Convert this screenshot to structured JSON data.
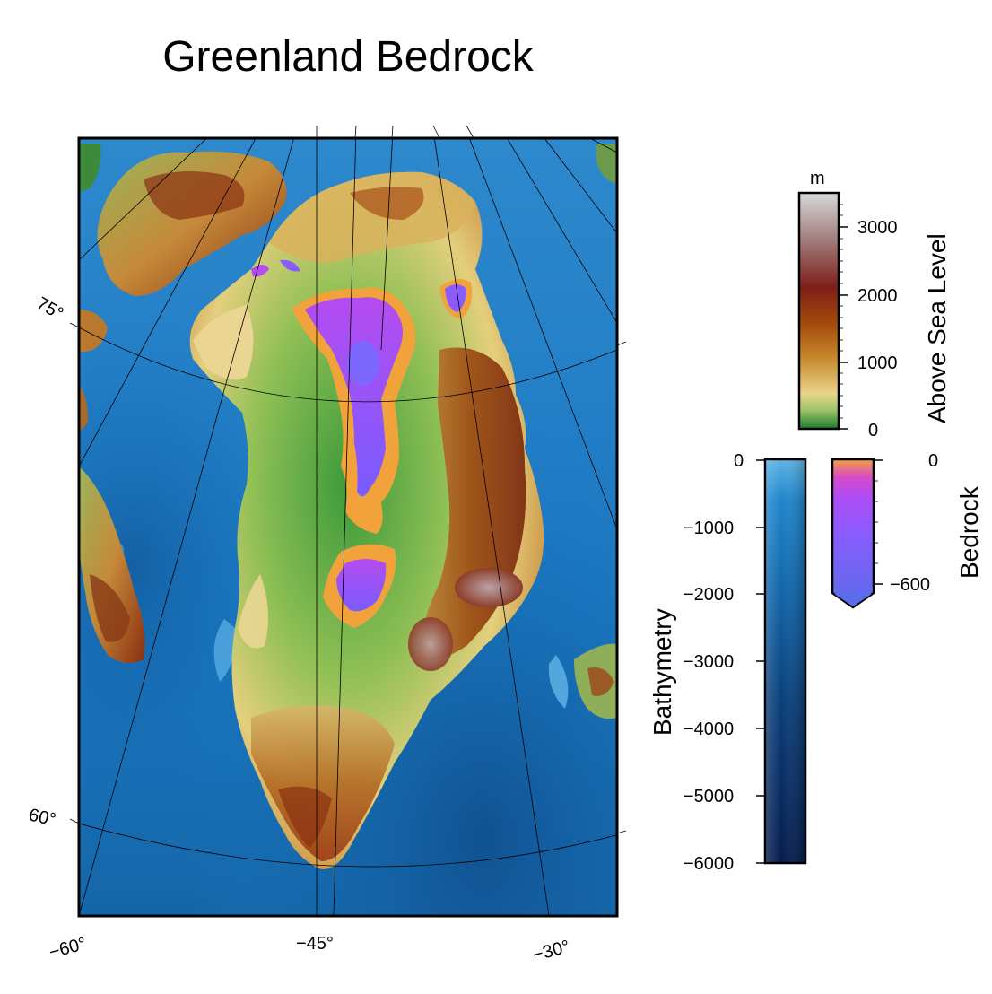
{
  "title": "Greenland Bedrock",
  "map": {
    "lat_labels": [
      "75°",
      "60°"
    ],
    "lon_labels": [
      "−60°",
      "−45°",
      "−30°"
    ]
  },
  "legend": {
    "above_sea_level": {
      "title": "Above Sea Level",
      "unit": "m",
      "ticks": [
        "3000",
        "2000",
        "1000",
        "0"
      ],
      "range": [
        0,
        3500
      ],
      "colors": [
        "#1e7a2e",
        "#e8d48a",
        "#a24a0c",
        "#7e1e1a",
        "#d8d8d8"
      ]
    },
    "bathymetry": {
      "title": "Bathymetry",
      "ticks": [
        "0",
        "−1000",
        "−2000",
        "−3000",
        "−4000",
        "−5000",
        "−6000"
      ],
      "range": [
        -6000,
        0
      ],
      "colors": [
        "#5cb3e6",
        "#1673b3",
        "#0a3f7a",
        "#051c4d"
      ]
    },
    "bedrock": {
      "title": "Bedrock",
      "ticks": [
        "0",
        "−600"
      ],
      "range": [
        -800,
        0
      ],
      "colors": [
        "#f4a23a",
        "#c43ce0",
        "#8a5cff",
        "#5a6ce8"
      ]
    }
  }
}
